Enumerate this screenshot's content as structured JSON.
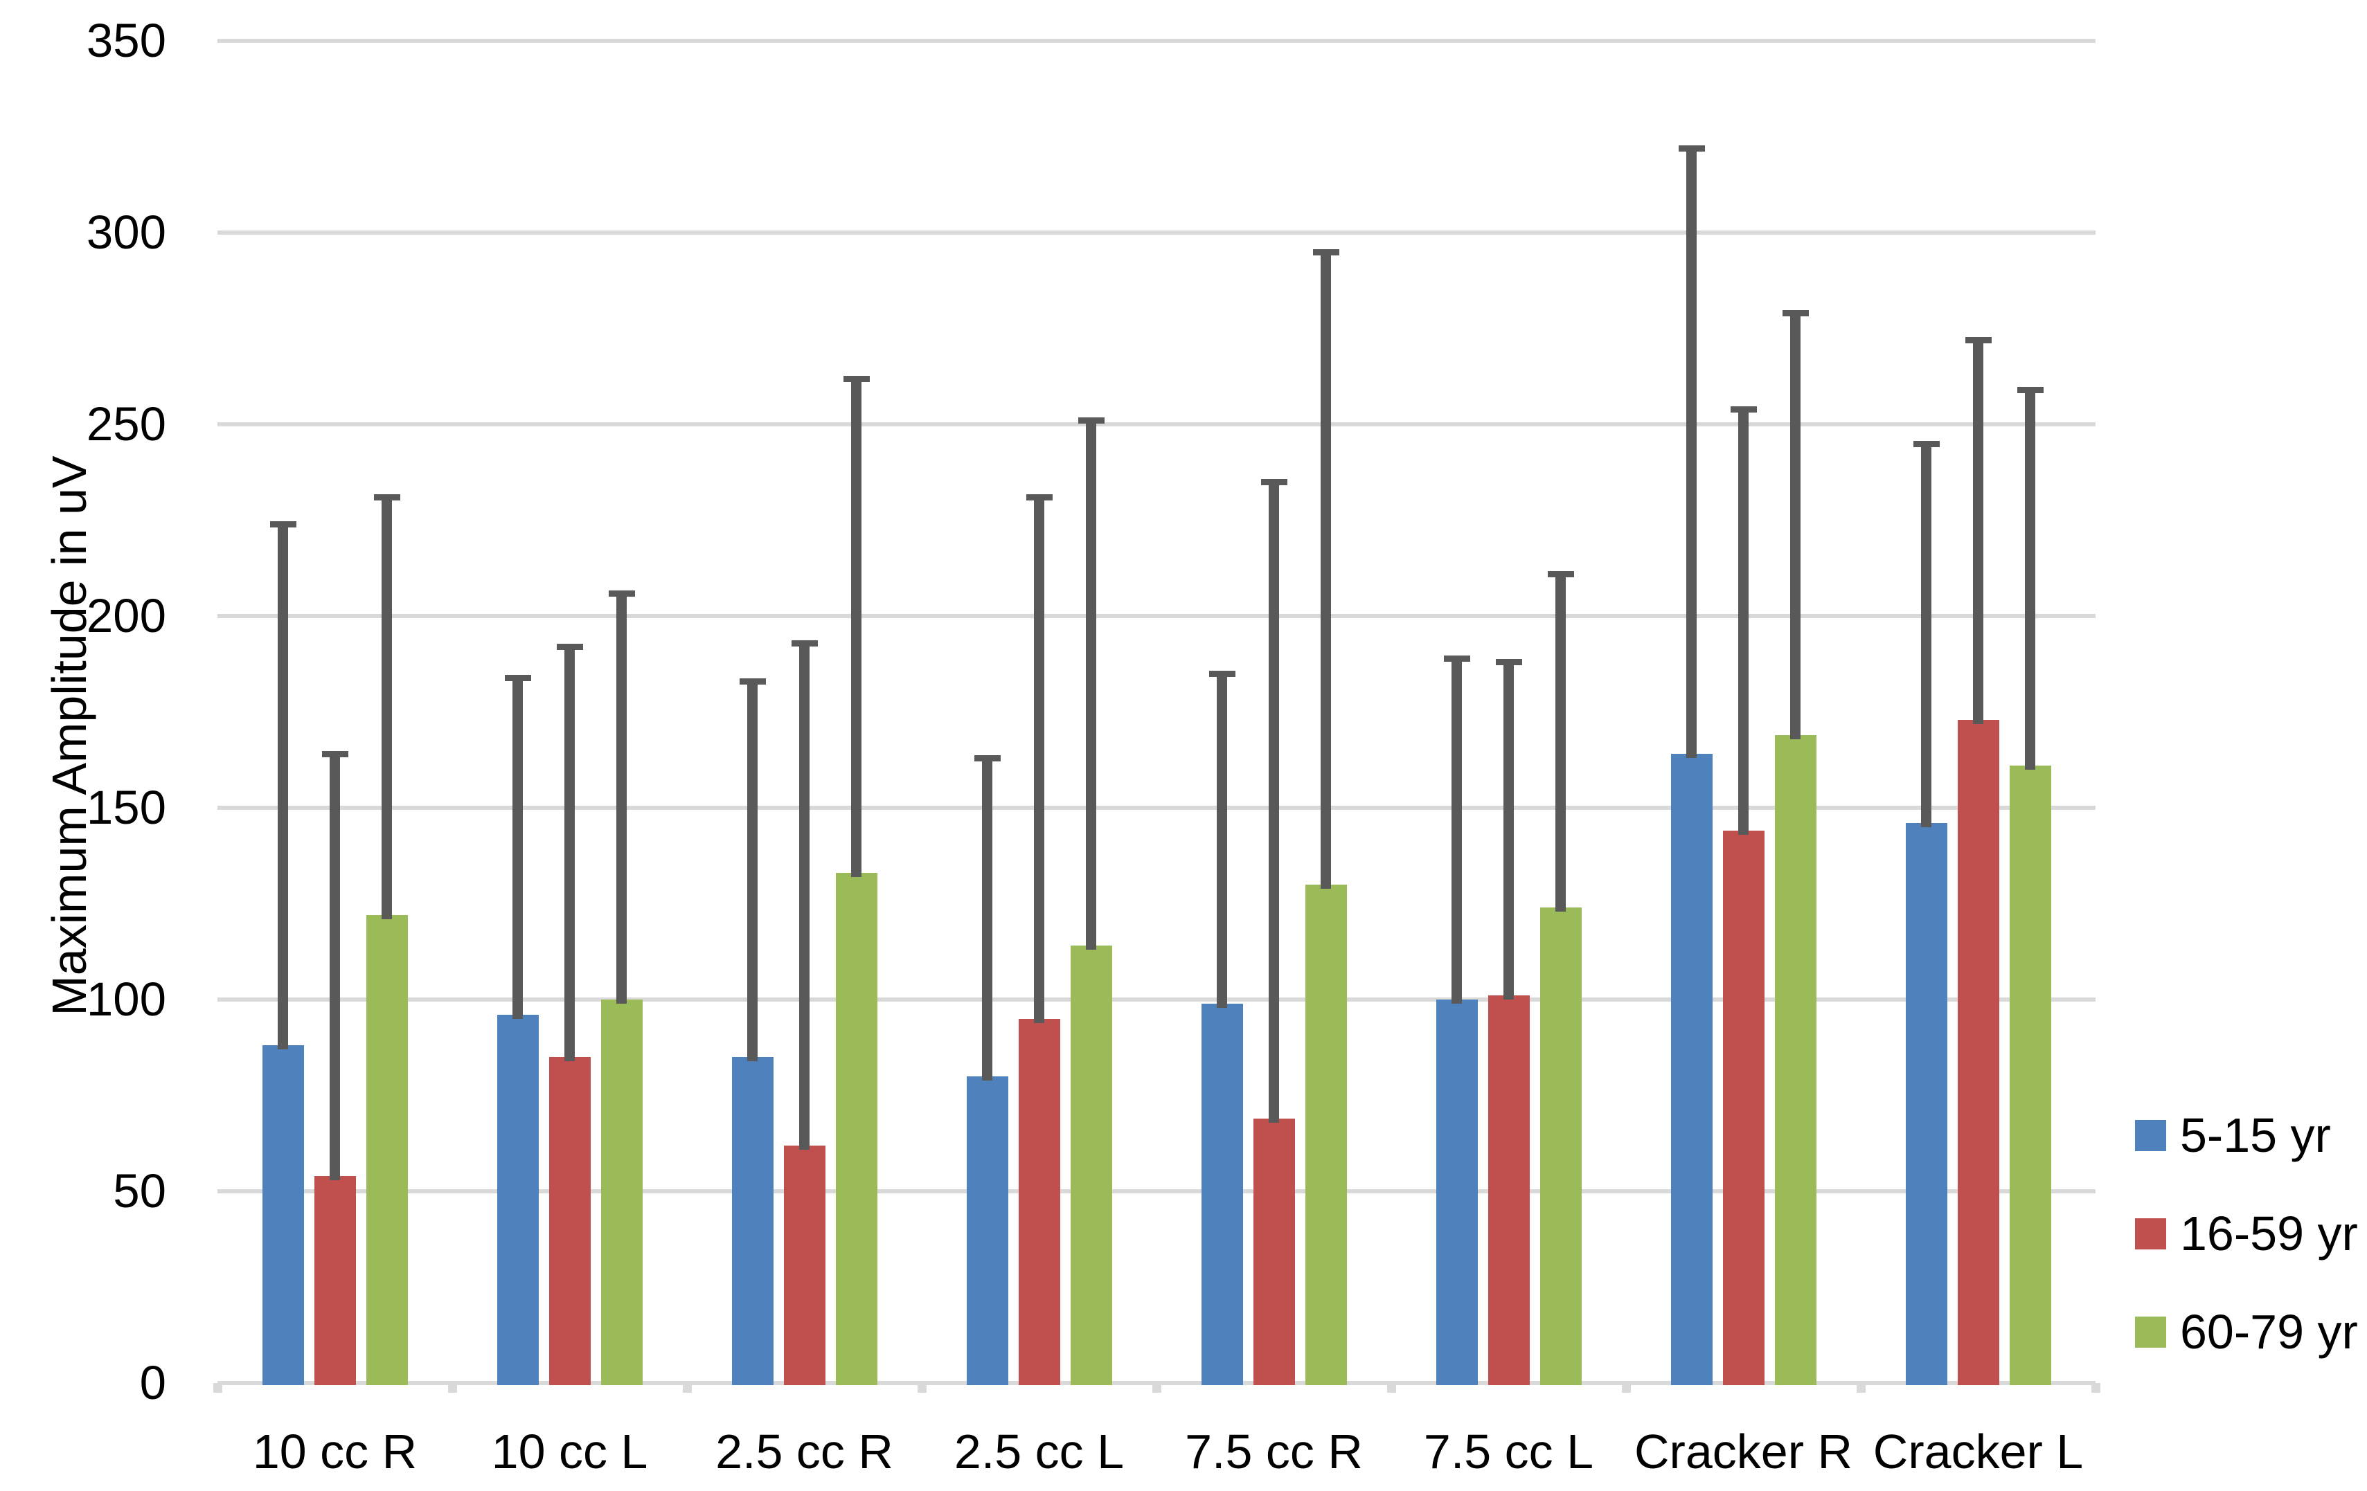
{
  "figure": {
    "background": "#FFFFFF",
    "text_color": "#000000"
  },
  "chart_data": {
    "type": "bar",
    "title": "",
    "xlabel": "",
    "ylabel": "Maximum Amplitude in uV",
    "ylim": [
      0,
      350
    ],
    "ytick_step": 50,
    "yticks": [
      "0",
      "50",
      "100",
      "150",
      "200",
      "250",
      "300",
      "350"
    ],
    "grid": "horizontal",
    "gridline_color": "#D9D9D9",
    "error_bar_color": "#595959",
    "legend_position": "right",
    "categories": [
      "10 cc R",
      "10 cc L",
      "2.5 cc R",
      "2.5 cc L",
      "7.5 cc R",
      "7.5 cc L",
      "Cracker R",
      "Cracker L"
    ],
    "series": [
      {
        "name": "5-15 yr",
        "color": "#4F81BD",
        "values": [
          88,
          96,
          85,
          80,
          99,
          100,
          164,
          146
        ],
        "error_top": [
          224,
          184,
          183,
          163,
          185,
          189,
          322,
          245
        ]
      },
      {
        "name": "16-59 yr",
        "color": "#C0504D",
        "values": [
          54,
          85,
          62,
          95,
          69,
          101,
          144,
          173
        ],
        "error_top": [
          164,
          192,
          193,
          231,
          235,
          188,
          254,
          272
        ]
      },
      {
        "name": "60-79 yr",
        "color": "#9BBB59",
        "values": [
          122,
          100,
          133,
          114,
          130,
          124,
          169,
          161
        ],
        "error_top": [
          231,
          206,
          262,
          251,
          295,
          211,
          279,
          259
        ]
      }
    ]
  }
}
